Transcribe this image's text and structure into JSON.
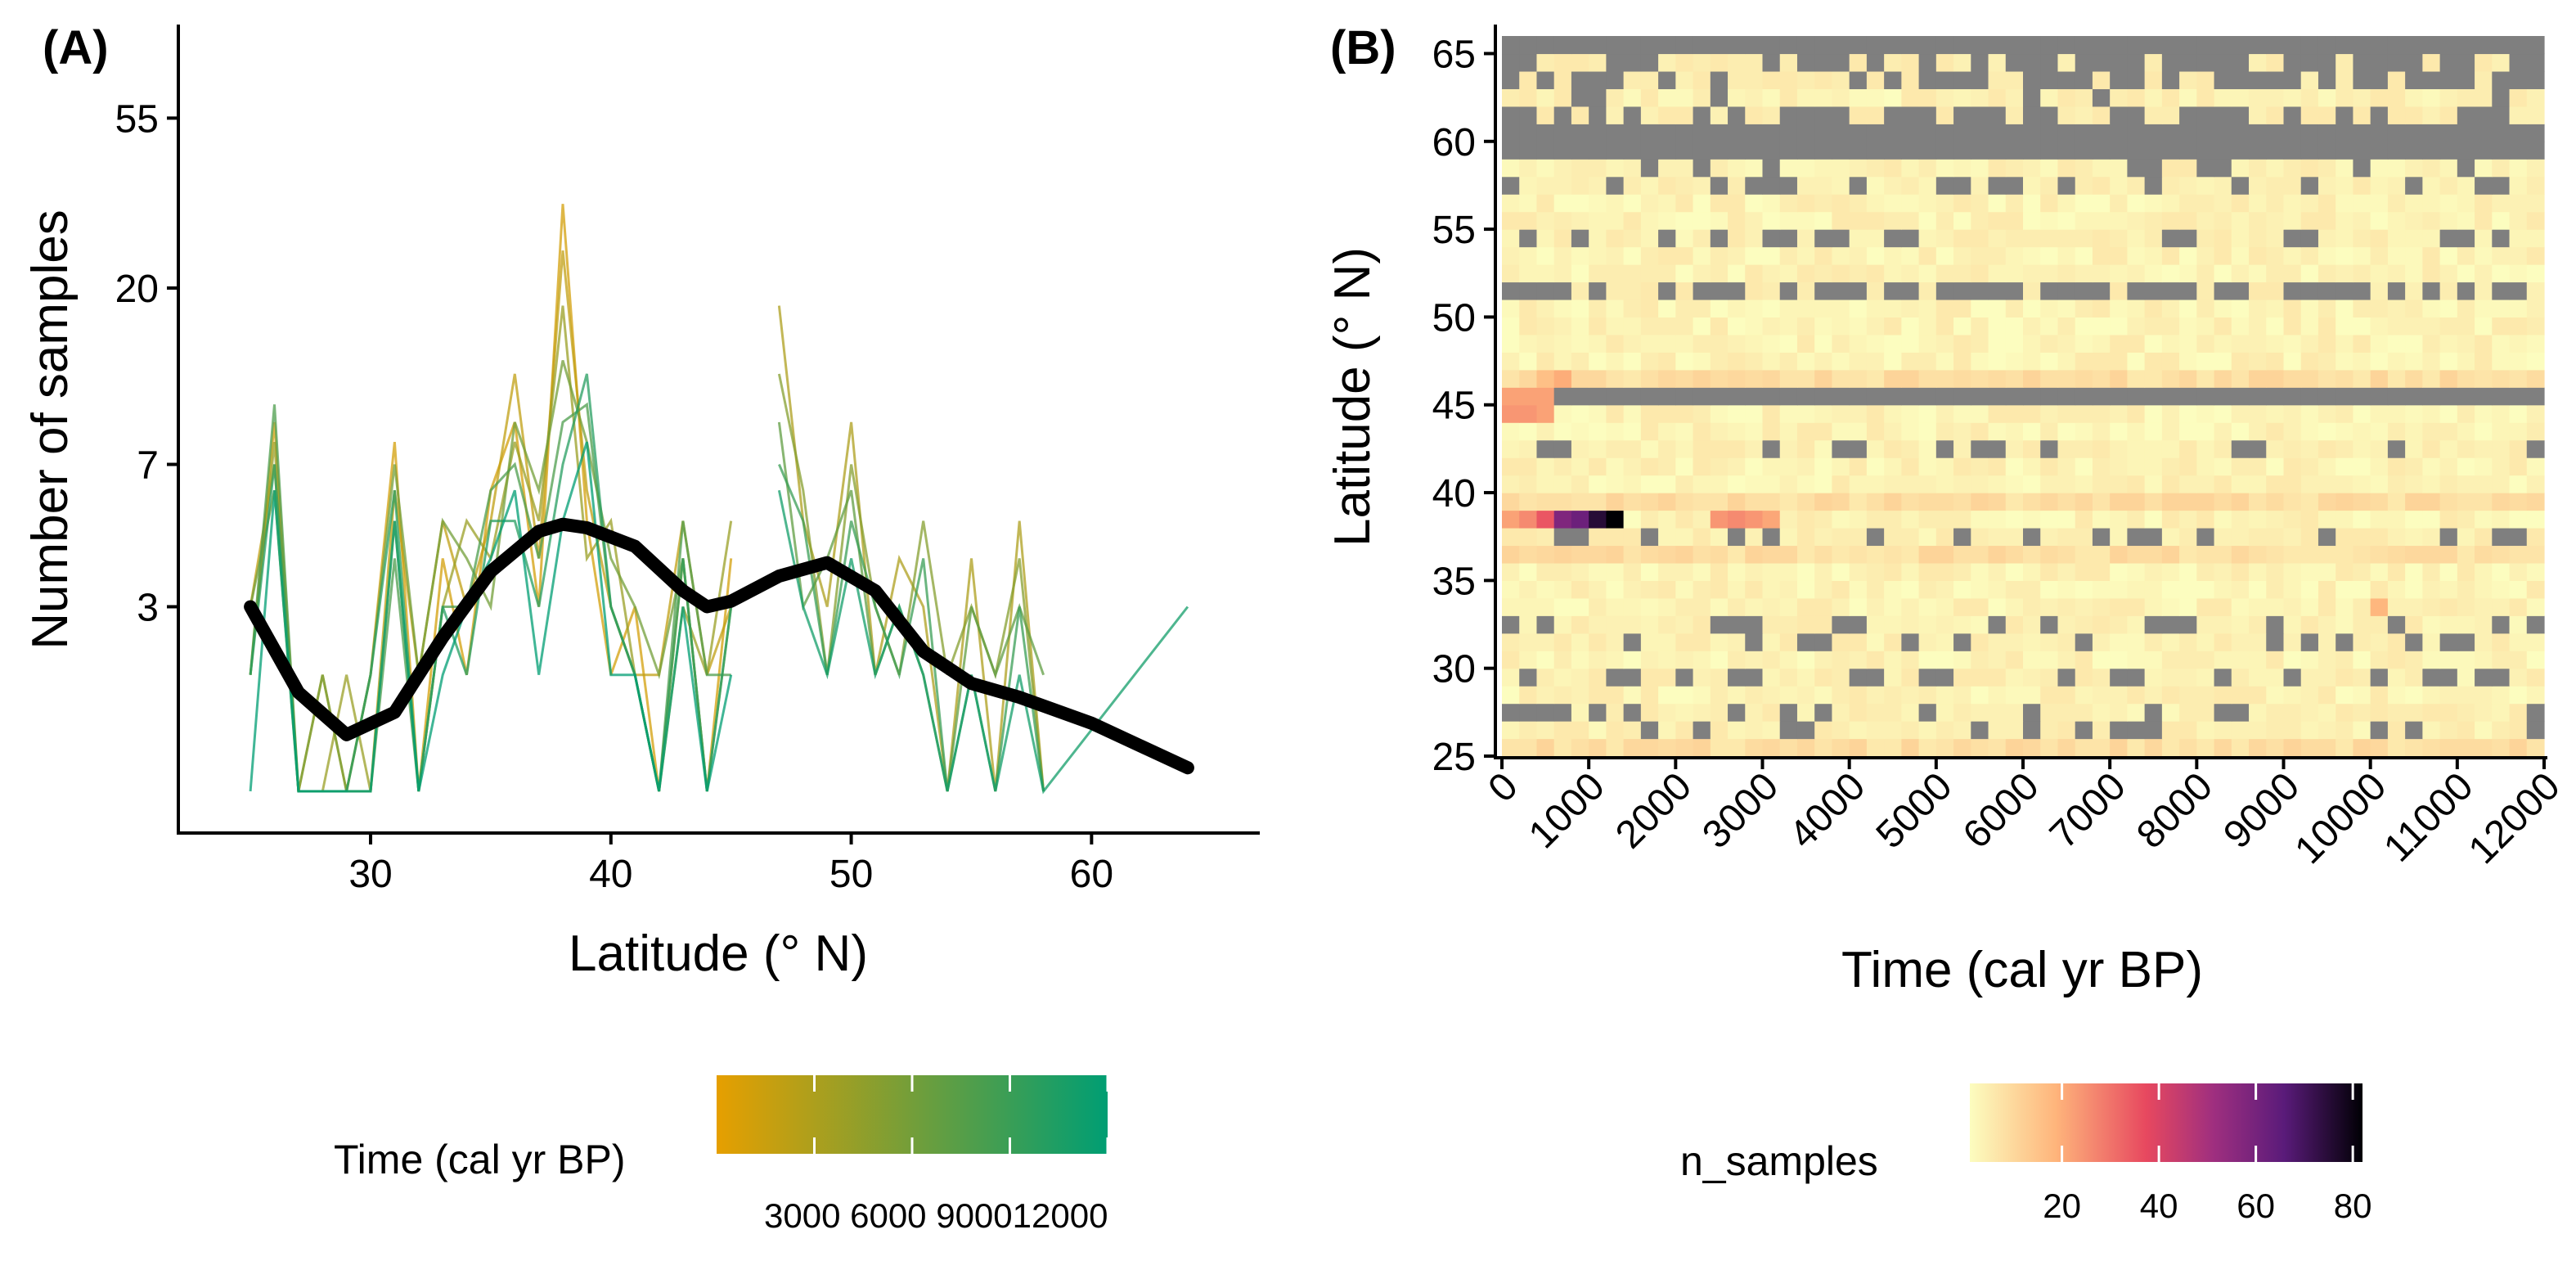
{
  "chart_data": [
    {
      "panel": "(A)",
      "type": "line",
      "xlabel": "Latitude (° N)",
      "ylabel": "Number of samples",
      "xlim": [
        22,
        67
      ],
      "ylim": [
        0.78,
        96
      ],
      "y_scale": "log",
      "x_ticks": [
        30,
        40,
        50,
        60
      ],
      "y_ticks": [
        3,
        7,
        20,
        55
      ],
      "color_legend": {
        "title": "Time (cal yr BP)",
        "low_color": "#E69F00",
        "high_color": "#009E73",
        "range": [
          0,
          12000
        ],
        "tick_values": [
          3000,
          6000,
          9000,
          12000
        ],
        "tick_label": "3000 6000 900012000"
      },
      "series": [
        {
          "name": "1000",
          "time": 1000,
          "x": [
            25,
            26,
            27,
            28,
            29,
            30,
            31,
            32,
            33,
            34,
            35,
            36,
            37,
            38,
            39,
            40,
            41,
            42,
            43,
            44,
            45
          ],
          "y": [
            2,
            9,
            1,
            1,
            1,
            2,
            8,
            1,
            4,
            2,
            6,
            9,
            3,
            33,
            5,
            2,
            3,
            1,
            4,
            1,
            4
          ]
        },
        {
          "name": "2000",
          "time": 2000,
          "x": [
            25,
            26,
            27,
            28,
            29,
            30,
            31,
            32,
            33,
            34,
            35,
            36,
            37,
            38,
            39,
            40,
            41,
            42,
            43,
            44,
            45
          ],
          "y": [
            3,
            7,
            1,
            2,
            1,
            1,
            6,
            2,
            5,
            3,
            5,
            12,
            4,
            25,
            6,
            3,
            2,
            2,
            5,
            2,
            3
          ]
        },
        {
          "name": "3000",
          "time": 3000,
          "x": [
            47,
            48,
            49,
            50,
            51,
            52,
            53,
            54,
            55,
            56,
            57,
            58
          ],
          "y": [
            18,
            5,
            3,
            9,
            2,
            4,
            3,
            1,
            4,
            1,
            5,
            1
          ]
        },
        {
          "name": "4000",
          "time": 4000,
          "x": [
            25,
            26,
            27,
            28,
            29,
            30,
            31,
            32,
            33,
            34,
            35,
            36,
            37,
            38,
            39,
            40,
            41,
            42,
            43,
            44,
            45
          ],
          "y": [
            2,
            8,
            1,
            1,
            2,
            1,
            5,
            1,
            3,
            5,
            4,
            8,
            5,
            18,
            4,
            5,
            2,
            1,
            3,
            2,
            5
          ]
        },
        {
          "name": "5000",
          "time": 5000,
          "x": [
            47,
            48,
            49,
            50,
            51,
            52,
            53,
            54,
            55,
            56,
            57,
            58
          ],
          "y": [
            12,
            6,
            2,
            7,
            3,
            2,
            5,
            2,
            3,
            2,
            4,
            1
          ]
        },
        {
          "name": "6000",
          "time": 6000,
          "x": [
            25,
            26,
            27,
            28,
            29,
            30,
            31,
            32,
            33,
            34,
            35,
            36,
            37,
            38,
            39,
            40,
            41,
            42,
            43,
            44,
            45
          ],
          "y": [
            3,
            6,
            1,
            2,
            1,
            2,
            7,
            2,
            5,
            4,
            3,
            9,
            6,
            13,
            8,
            4,
            3,
            2,
            4,
            1,
            3
          ]
        },
        {
          "name": "7000",
          "time": 7000,
          "x": [
            47,
            48,
            49,
            50,
            51,
            52,
            53,
            54,
            55,
            56,
            57,
            58
          ],
          "y": [
            9,
            3,
            4,
            6,
            2,
            3,
            2,
            1,
            3,
            2,
            3,
            2
          ]
        },
        {
          "name": "8000",
          "time": 8000,
          "x": [
            25,
            26,
            27,
            28,
            29,
            30,
            31,
            32,
            33,
            34,
            35,
            36,
            37,
            38,
            39,
            40,
            41,
            42,
            43,
            44,
            45
          ],
          "y": [
            2,
            10,
            1,
            1,
            1,
            1,
            4,
            1,
            3,
            3,
            6,
            7,
            4,
            9,
            10,
            3,
            2,
            1,
            5,
            2,
            2
          ]
        },
        {
          "name": "9000",
          "time": 9000,
          "x": [
            47,
            48,
            49,
            50,
            51,
            52,
            53,
            54,
            55,
            56,
            57,
            58
          ],
          "y": [
            7,
            5,
            2,
            5,
            3,
            2,
            4,
            1,
            2,
            1,
            3,
            1
          ]
        },
        {
          "name": "10000",
          "time": 10000,
          "x": [
            25,
            26,
            27,
            28,
            29,
            30,
            31,
            32,
            33,
            34,
            35,
            36,
            37,
            38,
            39,
            40,
            41,
            42,
            43,
            44,
            45
          ],
          "y": [
            2,
            7,
            1,
            1,
            1,
            2,
            6,
            1,
            3,
            2,
            5,
            5,
            3,
            7,
            12,
            3,
            2,
            1,
            4,
            1,
            3
          ]
        },
        {
          "name": "11000",
          "time": 11000,
          "x": [
            47,
            48,
            49,
            50,
            51,
            52,
            53,
            54,
            55,
            56,
            57,
            58,
            64
          ],
          "y": [
            6,
            3,
            2,
            4,
            2,
            3,
            2,
            1,
            2,
            1,
            2,
            1,
            3
          ]
        },
        {
          "name": "12000",
          "time": 12000,
          "x": [
            25,
            26,
            27,
            28,
            29,
            30,
            31,
            32,
            33,
            34,
            35,
            36,
            37,
            38,
            39,
            40,
            41,
            42,
            43,
            44,
            45
          ],
          "y": [
            1,
            6,
            1,
            1,
            1,
            1,
            5,
            1,
            2,
            3,
            4,
            6,
            2,
            5,
            8,
            2,
            2,
            1,
            3,
            1,
            2
          ]
        }
      ],
      "smooth": {
        "name": "smooth fit",
        "x": [
          25,
          27,
          29,
          31,
          33,
          35,
          37,
          38,
          39,
          41,
          43,
          44,
          45,
          47,
          49,
          51,
          53,
          55,
          57,
          60,
          64
        ],
        "y": [
          3.0,
          1.8,
          1.4,
          1.6,
          2.5,
          3.7,
          4.7,
          4.9,
          4.8,
          4.3,
          3.3,
          3.0,
          3.1,
          3.6,
          3.9,
          3.3,
          2.3,
          1.9,
          1.75,
          1.5,
          1.15
        ]
      }
    },
    {
      "panel": "(B)",
      "type": "heatmap",
      "xlabel": "Time (cal yr BP)",
      "ylabel": "Latitude (° N)",
      "xlim": [
        0,
        12000
      ],
      "ylim": [
        25,
        66
      ],
      "x_ticks": [
        0,
        1000,
        2000,
        3000,
        4000,
        5000,
        6000,
        7000,
        8000,
        9000,
        10000,
        11000,
        12000
      ],
      "y_ticks": [
        25,
        30,
        35,
        40,
        45,
        50,
        55,
        60,
        65
      ],
      "bin_time": 200,
      "bin_lat": 1,
      "missing_color": "#7F7F7F",
      "color_legend": {
        "title": "n_samples",
        "range": [
          1,
          82
        ],
        "tick_values": [
          20,
          40,
          60,
          80
        ],
        "stops": [
          "#FCFDBF",
          "#FEB47B",
          "#E7485F",
          "#9F2F7F",
          "#5A1B7A",
          "#000004"
        ]
      },
      "missing_rows": [
        45,
        59,
        60,
        65
      ],
      "dense_missing_rows": [
        51,
        61,
        63,
        64
      ],
      "sparse_missing_rows": [
        26,
        27,
        29,
        31,
        32,
        37,
        42,
        54,
        57
      ],
      "hot_cells": [
        {
          "lat": 38,
          "time": 100,
          "n": 22
        },
        {
          "lat": 38,
          "time": 300,
          "n": 26
        },
        {
          "lat": 38,
          "time": 500,
          "n": 35
        },
        {
          "lat": 38,
          "time": 700,
          "n": 58
        },
        {
          "lat": 38,
          "time": 900,
          "n": 62
        },
        {
          "lat": 38,
          "time": 1100,
          "n": 75
        },
        {
          "lat": 38,
          "time": 1300,
          "n": 82
        },
        {
          "lat": 38,
          "time": 2500,
          "n": 24
        },
        {
          "lat": 38,
          "time": 2700,
          "n": 26
        },
        {
          "lat": 38,
          "time": 2900,
          "n": 24
        },
        {
          "lat": 38,
          "time": 3100,
          "n": 21
        },
        {
          "lat": 44,
          "time": 100,
          "n": 24
        },
        {
          "lat": 44,
          "time": 300,
          "n": 24
        },
        {
          "lat": 44,
          "time": 500,
          "n": 22
        },
        {
          "lat": 46,
          "time": 700,
          "n": 20
        },
        {
          "lat": 46,
          "time": 500,
          "n": 16
        },
        {
          "lat": 33,
          "time": 10100,
          "n": 18
        }
      ]
    }
  ]
}
